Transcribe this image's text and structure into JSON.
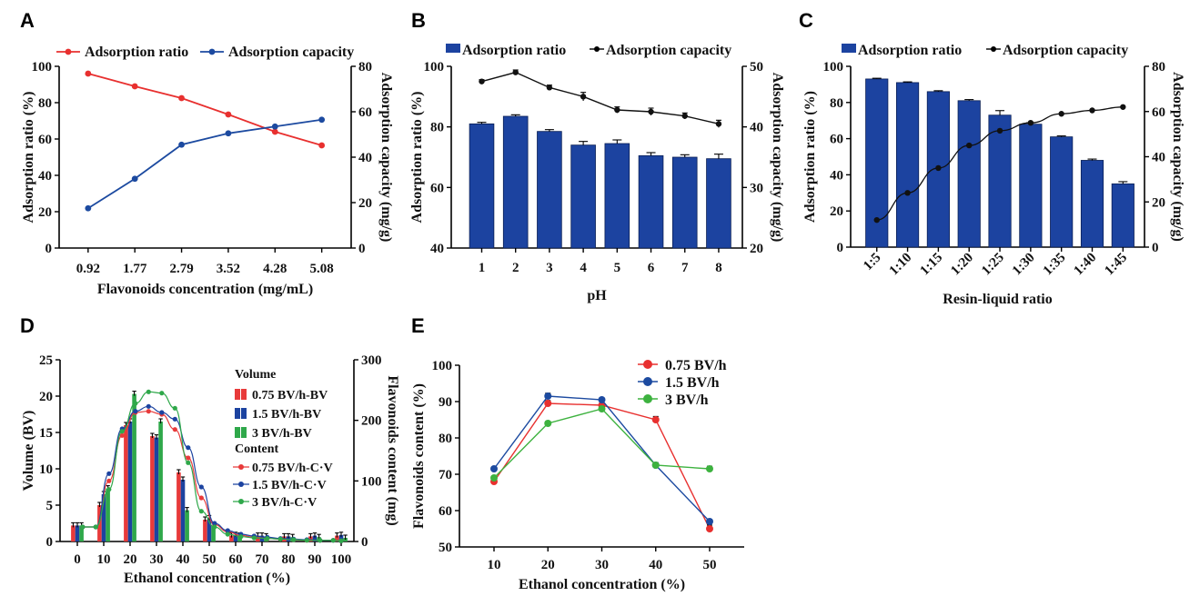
{
  "figure": {
    "panel_letters": [
      "A",
      "B",
      "C",
      "D",
      "E"
    ]
  },
  "chart_data": [
    {
      "panel": "A",
      "type": "line",
      "categories": [
        "0.92",
        "1.77",
        "2.79",
        "3.52",
        "4.28",
        "5.08"
      ],
      "xlabel": "Flavonoids concentration (mg/mL)",
      "ylabel": "Adsorption ratio (%)",
      "y2label": "Adsorption capacity (mg/g)",
      "ylim": [
        0,
        100
      ],
      "yticks": [
        0,
        20,
        40,
        60,
        80,
        100
      ],
      "y2lim": [
        0,
        80
      ],
      "y2ticks": [
        0,
        20,
        40,
        60,
        80
      ],
      "legend_position": "top",
      "series": [
        {
          "name": "Adsorption ratio",
          "axis": "left",
          "color": "#e8302f",
          "values": [
            96,
            89,
            82.5,
            73.5,
            64,
            56.5
          ]
        },
        {
          "name": "Adsorption capacity",
          "axis": "right",
          "color": "#1c4aa0",
          "values": [
            17.5,
            30.5,
            45.5,
            50.5,
            53.5,
            56.5
          ]
        }
      ]
    },
    {
      "panel": "B",
      "type": "bar",
      "categories": [
        "1",
        "2",
        "3",
        "4",
        "5",
        "6",
        "7",
        "8"
      ],
      "xlabel": "pH",
      "ylabel": "Adsorption ratio (%)",
      "y2label": "Adsorption capacity (mg/g)",
      "ylim": [
        40,
        100
      ],
      "yticks": [
        40,
        60,
        80,
        100
      ],
      "y2lim": [
        20,
        50
      ],
      "y2ticks": [
        20,
        30,
        40,
        50
      ],
      "legend_position": "top",
      "series": [
        {
          "name": "Adsorption ratio",
          "axis": "left",
          "kind": "bar",
          "color": "#1c43a0",
          "values": [
            81,
            83.5,
            78.5,
            74,
            74.5,
            70.5,
            70,
            69.5
          ],
          "errors": [
            0.5,
            0.5,
            0.6,
            1.2,
            1.2,
            1,
            0.8,
            1.5
          ]
        },
        {
          "name": "Adsorption capacity",
          "axis": "right",
          "kind": "line",
          "color": "#111111",
          "values": [
            47.5,
            49,
            46.5,
            45,
            42.8,
            42.5,
            41.8,
            40.5
          ],
          "errors": [
            0.3,
            0.4,
            0.4,
            0.7,
            0.5,
            0.6,
            0.5,
            0.6
          ]
        }
      ]
    },
    {
      "panel": "C",
      "type": "bar",
      "categories": [
        "1:5",
        "1:10",
        "1:15",
        "1:20",
        "1:25",
        "1:30",
        "1:35",
        "1:40",
        "1:45"
      ],
      "xlabel": "Resin-liquid ratio",
      "ylabel": "Adsorption ratio (%)",
      "y2label": "Adsorption capacity (mg/g)",
      "ylim": [
        0,
        100
      ],
      "yticks": [
        0,
        20,
        40,
        60,
        80,
        100
      ],
      "y2lim": [
        0,
        80
      ],
      "y2ticks": [
        0,
        20,
        40,
        60,
        80
      ],
      "legend_position": "top",
      "series": [
        {
          "name": "Adsorption ratio",
          "axis": "left",
          "kind": "bar",
          "color": "#1c43a0",
          "values": [
            93,
            91,
            86,
            81,
            73,
            68,
            61,
            48,
            35
          ],
          "errors": [
            0.4,
            0.4,
            0.5,
            0.6,
            2.5,
            0.8,
            0.5,
            0.7,
            1.2
          ]
        },
        {
          "name": "Adsorption capacity",
          "axis": "right",
          "kind": "line",
          "color": "#111111",
          "values": [
            12,
            24,
            35,
            45,
            51.5,
            55,
            59,
            60.5,
            62
          ]
        }
      ]
    },
    {
      "panel": "D",
      "type": "bar",
      "categories": [
        "0",
        "10",
        "20",
        "30",
        "40",
        "50",
        "60",
        "70",
        "80",
        "90",
        "100"
      ],
      "xlabel": "Ethanol concentration (%)",
      "ylabel": "Volume (BV)",
      "y2label": "Flavonoids content (mg)",
      "ylim": [
        0,
        25
      ],
      "yticks": [
        0,
        5,
        10,
        15,
        20,
        25
      ],
      "y2lim": [
        0,
        300
      ],
      "y2ticks": [
        0,
        100,
        200,
        300
      ],
      "legend_position": "right",
      "legend_groups": [
        "Volume",
        "Content"
      ],
      "series": [
        {
          "name": "0.75 BV/h-BV",
          "axis": "left",
          "kind": "bar",
          "color": "#e83a3a",
          "values": [
            2.2,
            5,
            16,
            14.5,
            9.5,
            3,
            0.8,
            0.8,
            0.7,
            0.7,
            0.8
          ]
        },
        {
          "name": "1.5 BV/h-BV",
          "axis": "left",
          "kind": "bar",
          "color": "#1c43a0",
          "values": [
            2.2,
            6.5,
            16.5,
            14.3,
            8.5,
            3.2,
            0.9,
            0.8,
            0.7,
            0.8,
            0.9
          ]
        },
        {
          "name": "3 BV/h-BV",
          "axis": "left",
          "kind": "bar",
          "color": "#2fa84a",
          "values": [
            2.2,
            7.3,
            20.3,
            16.5,
            4.3,
            2.2,
            0.8,
            0.7,
            0.6,
            0.6,
            0.5
          ]
        },
        {
          "name": "0.75 BV/h-C·V",
          "axis": "right",
          "kind": "line",
          "color": "#e83a3a",
          "x": [
            2,
            7,
            12,
            17,
            22,
            27,
            32,
            37,
            42,
            47,
            52,
            57,
            62,
            67,
            72,
            77,
            82,
            87,
            92,
            97,
            100
          ],
          "values": [
            24,
            24,
            100,
            175,
            213,
            215,
            210,
            185,
            138,
            72,
            28,
            16,
            10,
            7,
            5,
            4,
            3,
            2,
            2,
            2,
            1
          ]
        },
        {
          "name": "1.5 BV/h-C·V",
          "axis": "right",
          "kind": "line",
          "color": "#1c43a0",
          "x": [
            2,
            7,
            12,
            17,
            22,
            27,
            32,
            37,
            42,
            47,
            52,
            57,
            62,
            67,
            72,
            77,
            82,
            87,
            92,
            97,
            100
          ],
          "values": [
            24,
            24,
            112,
            186,
            215,
            223,
            213,
            202,
            155,
            90,
            30,
            18,
            12,
            9,
            7,
            5,
            4,
            3,
            2,
            2,
            1
          ]
        },
        {
          "name": "3 BV/h-C·V",
          "axis": "right",
          "kind": "line",
          "color": "#2fa84a",
          "x": [
            2,
            7,
            12,
            17,
            22,
            27,
            32,
            37,
            42,
            47,
            52,
            57,
            62,
            67,
            72,
            77,
            82,
            87,
            92,
            97,
            100
          ],
          "values": [
            24,
            24,
            86,
            182,
            228,
            247,
            245,
            220,
            130,
            50,
            24,
            12,
            8,
            6,
            5,
            4,
            3,
            2,
            2,
            2,
            1
          ]
        }
      ]
    },
    {
      "panel": "E",
      "type": "line",
      "categories": [
        "10",
        "20",
        "30",
        "40",
        "50"
      ],
      "xlabel": "Ethanol concentration (%)",
      "ylabel": "Flavonoids content (%)",
      "ylim": [
        50,
        100
      ],
      "yticks": [
        50,
        60,
        70,
        80,
        90,
        100
      ],
      "legend_position": "top-right",
      "series": [
        {
          "name": "0.75 BV/h",
          "color": "#e8302f",
          "values": [
            68,
            89.5,
            89,
            85,
            55
          ],
          "errors": [
            0.8,
            0.8,
            0.6,
            0.9,
            1
          ]
        },
        {
          "name": "1.5 BV/h",
          "color": "#1c4aa0",
          "values": [
            71.5,
            91.5,
            90.5,
            72.5,
            57
          ],
          "errors": [
            0.5,
            0.8,
            0.5,
            0.7,
            0.6
          ]
        },
        {
          "name": "3 BV/h",
          "color": "#3db23f",
          "values": [
            69,
            84,
            88,
            72.5,
            71.5
          ],
          "errors": [
            0.5,
            0.5,
            0.6,
            0.5,
            0.7
          ]
        }
      ]
    }
  ]
}
